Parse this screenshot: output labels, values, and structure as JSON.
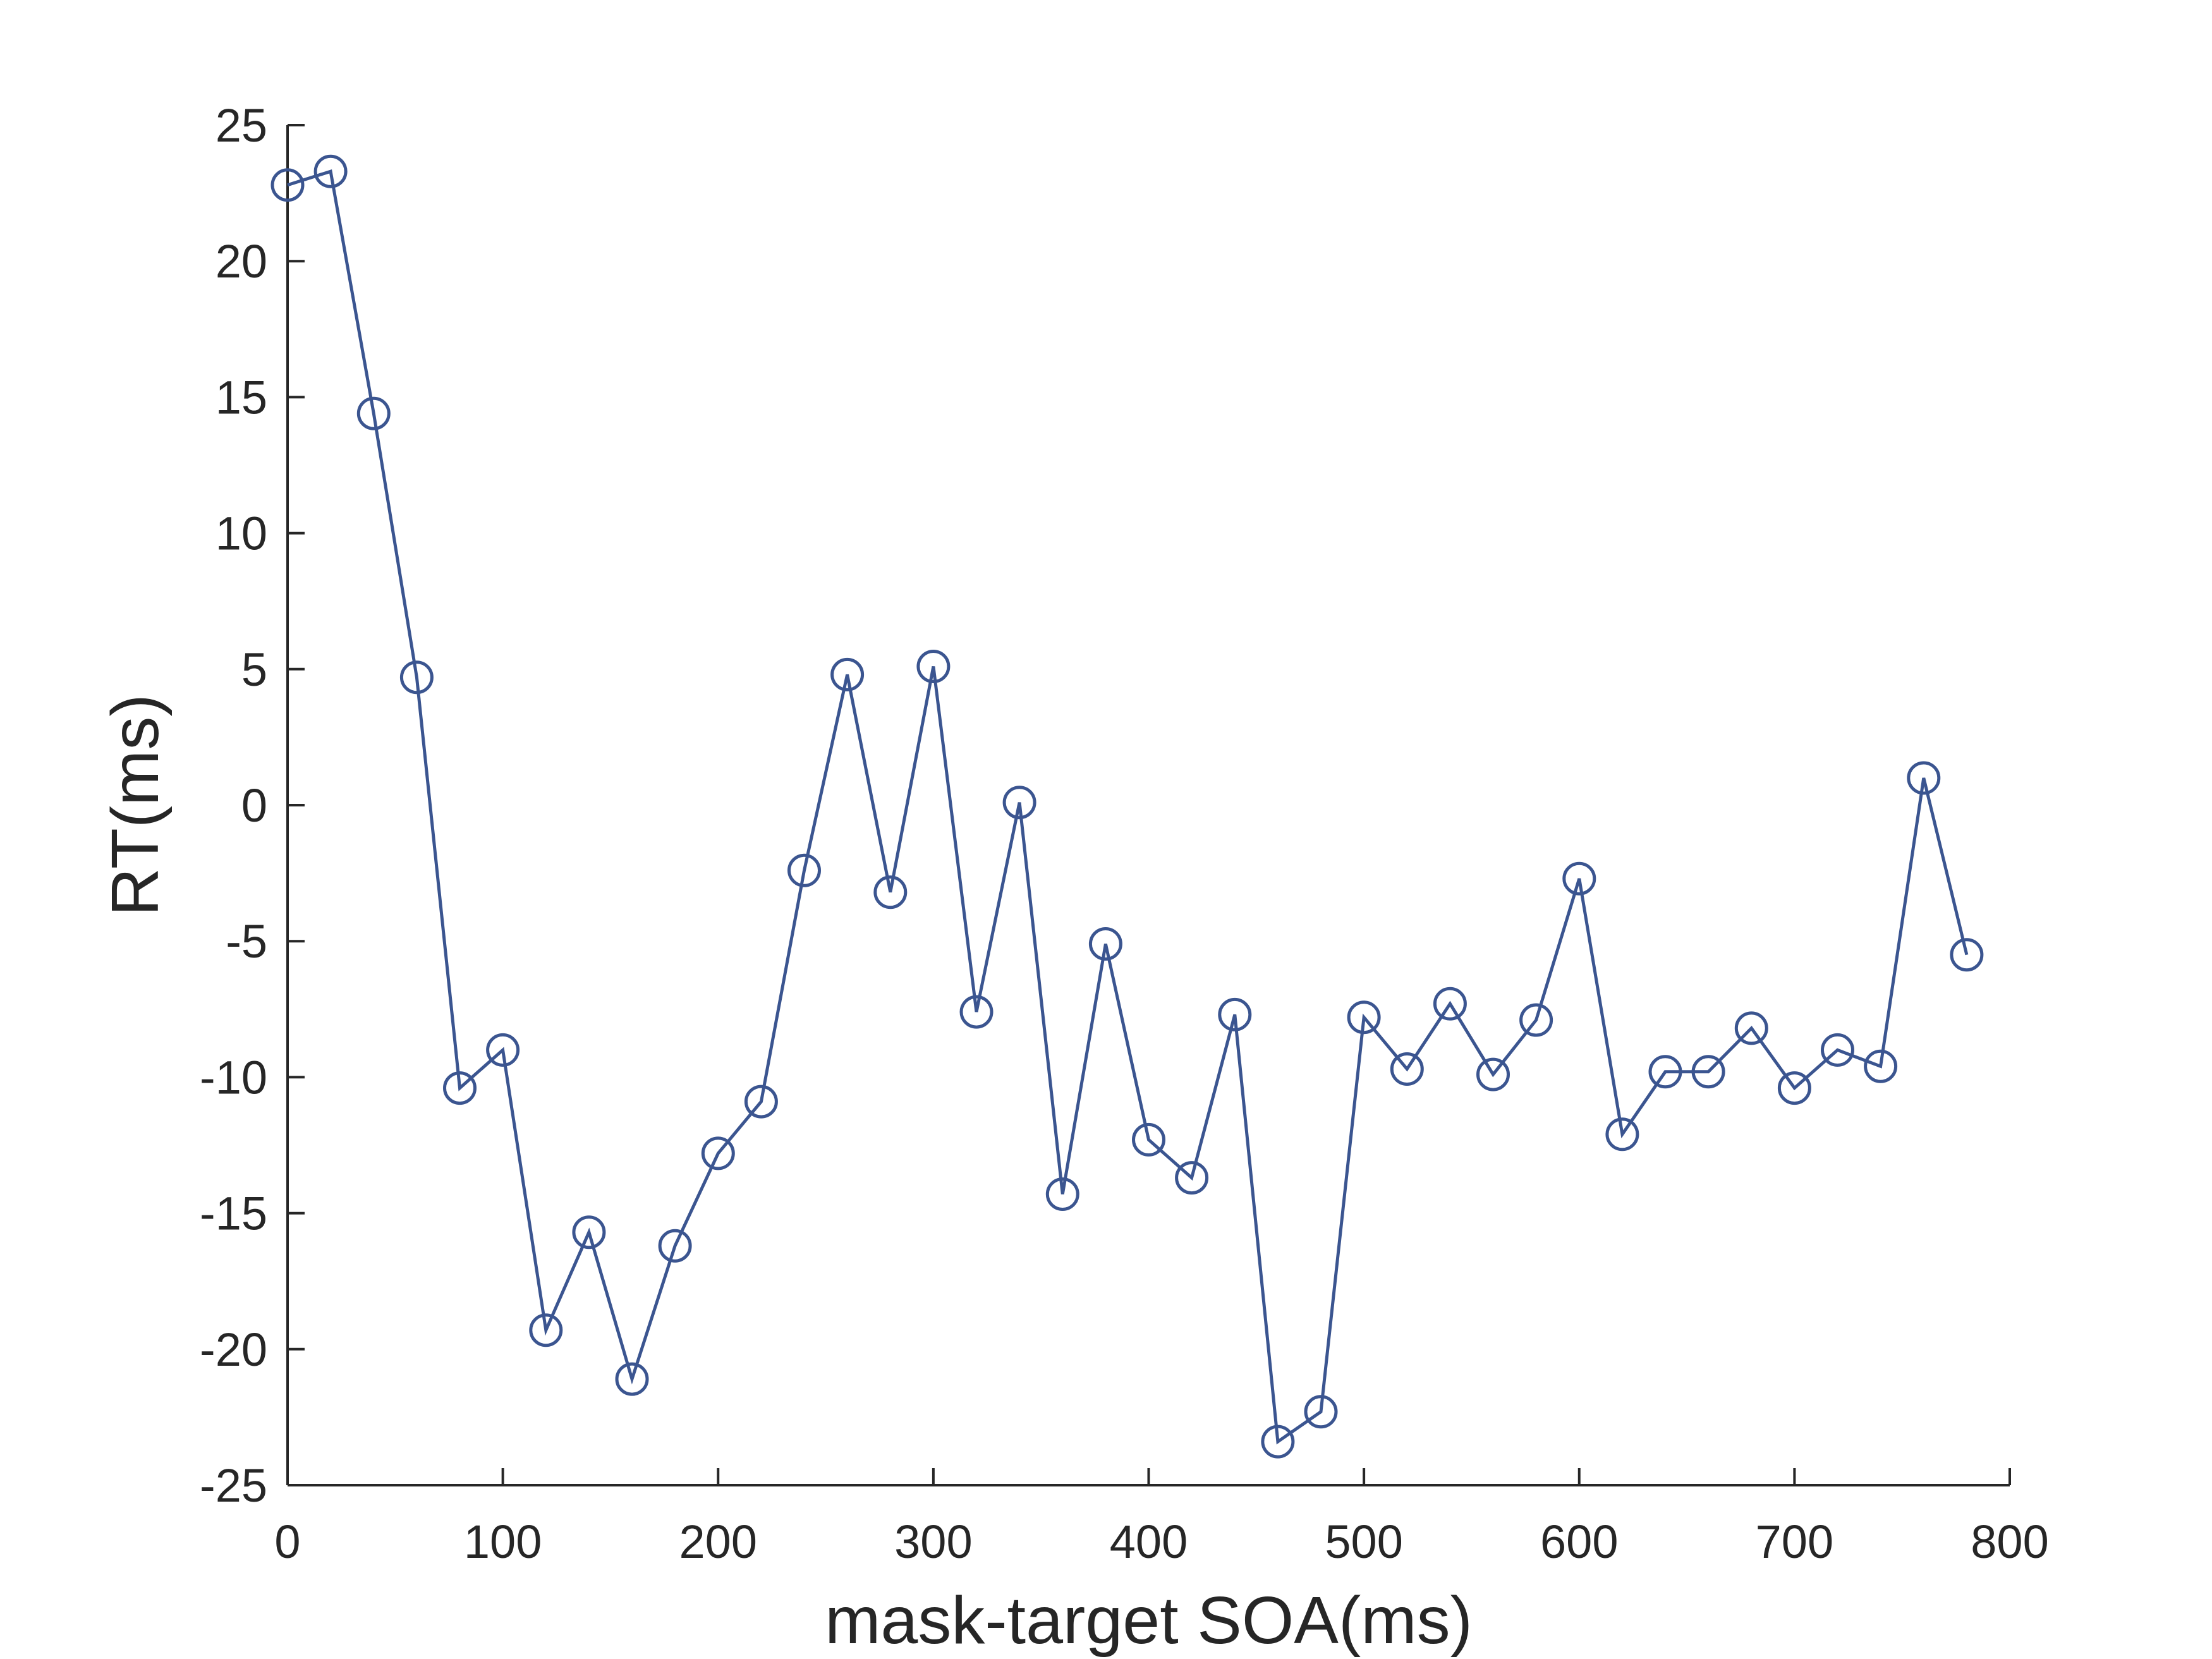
{
  "chart_data": {
    "type": "line",
    "title": "",
    "xlabel": "mask-target SOA(ms)",
    "ylabel": "RT(ms)",
    "xlim": [
      0,
      800
    ],
    "ylim": [
      -25,
      25
    ],
    "xticks": [
      0,
      100,
      200,
      300,
      400,
      500,
      600,
      700,
      800
    ],
    "yticks": [
      25,
      20,
      15,
      10,
      5,
      0,
      -5,
      -10,
      -15,
      -20,
      -25
    ],
    "xtick_labels": [
      "0",
      "100",
      "200",
      "300",
      "400",
      "500",
      "600",
      "700",
      "800"
    ],
    "ytick_labels": [
      "25",
      "20",
      "15",
      "10",
      "5",
      "0",
      "-5",
      "-10",
      "-15",
      "-20",
      "-25"
    ],
    "grid": false,
    "series": [
      {
        "name": "RT",
        "color": "#3b5590",
        "marker": "circle-open",
        "x": [
          0,
          20,
          40,
          60,
          80,
          100,
          120,
          140,
          160,
          180,
          200,
          220,
          240,
          260,
          280,
          300,
          320,
          340,
          360,
          380,
          400,
          420,
          440,
          460,
          480,
          500,
          520,
          540,
          560,
          580,
          600,
          620,
          640,
          660,
          680,
          700,
          720,
          740,
          760,
          780
        ],
        "values": [
          22.8,
          23.3,
          14.4,
          4.7,
          -10.4,
          -9.0,
          -19.3,
          -15.7,
          -21.1,
          -16.2,
          -12.8,
          -10.9,
          -2.4,
          4.8,
          -3.2,
          5.1,
          -7.6,
          0.1,
          -14.3,
          -5.1,
          -12.3,
          -13.7,
          -7.7,
          -23.4,
          -22.3,
          -7.8,
          -9.7,
          -7.3,
          -9.9,
          -7.9,
          -2.7,
          -12.1,
          -9.8,
          -9.8,
          -8.2,
          -10.4,
          -9.0,
          -9.6,
          1.0,
          -5.5
        ]
      }
    ],
    "axis_color": "#262626",
    "background": "#ffffff"
  }
}
